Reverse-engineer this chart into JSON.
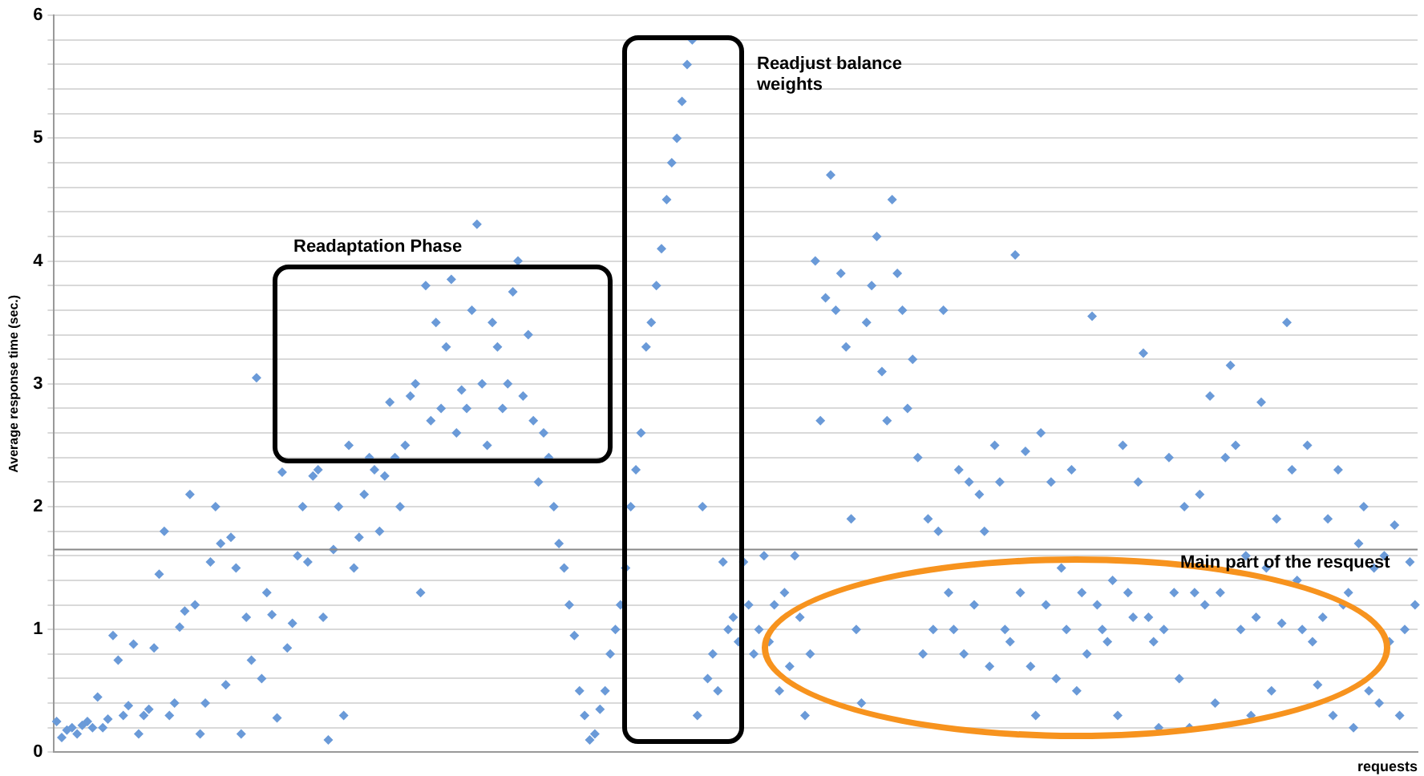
{
  "chart_data": {
    "type": "scatter",
    "ylabel": "Average response time (sec.)",
    "xlabel": "requests",
    "annotations": [
      "Readaptation Phase",
      "Readjust balance weights",
      "Main part of the resquest"
    ],
    "marker": "diamond",
    "grid": "y",
    "tick_labels": "y",
    "ylim": [
      0,
      6
    ],
    "yticks": [
      0,
      {
        "value": 0.2,
        "label": null
      },
      {
        "value": 0.4,
        "label": null
      },
      {
        "value": 0.6,
        "label": null
      },
      {
        "value": 0.8,
        "label": null
      },
      1,
      {
        "value": 1.2,
        "label": null
      },
      {
        "value": 1.4,
        "label": null
      },
      {
        "value": 1.6,
        "label": null
      },
      {
        "value": 1.8,
        "label": null
      },
      2,
      {
        "value": 2.2,
        "label": null
      },
      {
        "value": 2.4,
        "label": null
      },
      {
        "value": 2.6,
        "label": null
      },
      {
        "value": 2.8,
        "label": null
      },
      3,
      {
        "value": 3.2,
        "label": null
      },
      {
        "value": 3.4,
        "label": null
      },
      {
        "value": 3.6,
        "label": null
      },
      {
        "value": 3.8,
        "label": null
      },
      4,
      {
        "value": 4.2,
        "label": null
      },
      {
        "value": 4.4,
        "label": null
      },
      {
        "value": 4.6,
        "label": null
      },
      {
        "value": 4.8,
        "label": null
      },
      5,
      {
        "value": 5.2,
        "label": null
      },
      {
        "value": 5.4,
        "label": null
      },
      {
        "value": 5.6,
        "label": null
      },
      {
        "value": 5.8,
        "label": null
      },
      6
    ],
    "ref_lines": [
      {
        "axis": "y",
        "value": 1.65,
        "color": "#888888"
      }
    ],
    "categories": [
      null,
      null,
      null,
      null,
      null,
      null,
      null,
      null,
      null,
      null,
      null,
      null,
      null,
      null,
      null,
      null,
      null,
      null,
      null,
      null,
      null,
      null,
      null,
      null,
      null,
      null,
      null,
      null,
      null,
      null,
      null,
      null,
      null,
      null,
      null,
      null,
      null,
      null,
      null,
      null,
      null,
      null,
      null,
      null,
      null,
      null,
      null,
      null,
      null,
      null,
      null,
      null,
      null,
      null,
      null,
      null,
      null,
      null,
      null,
      null,
      null,
      null,
      null,
      null,
      null,
      null,
      null,
      null,
      null,
      null,
      null,
      null,
      null,
      null,
      null,
      null,
      null,
      null,
      null,
      null,
      null,
      null,
      null,
      null,
      null,
      null,
      null,
      null,
      null,
      null,
      null,
      null,
      null,
      null,
      null,
      null,
      null,
      null,
      null,
      null,
      null,
      null,
      null,
      null,
      null,
      null,
      null,
      null,
      null,
      null,
      null,
      null,
      null,
      null,
      null,
      null,
      null,
      null,
      null,
      null,
      null,
      null,
      null,
      null,
      null,
      null,
      null,
      null,
      null,
      null,
      null,
      null,
      null,
      null,
      null,
      null,
      null,
      null,
      null,
      null,
      null,
      null,
      null,
      null,
      null,
      null,
      null,
      null,
      null,
      null,
      null,
      null,
      null,
      null,
      null,
      null,
      null,
      null,
      null,
      null,
      null,
      null,
      null,
      null,
      null,
      null,
      null,
      null,
      null,
      null,
      null,
      null,
      null,
      null,
      null,
      null,
      null,
      null,
      null,
      null,
      null,
      null,
      null,
      null,
      null,
      null,
      null,
      null,
      null,
      null,
      null,
      null,
      null,
      null,
      null,
      null,
      null,
      null,
      null,
      null,
      null,
      null,
      null,
      null,
      null,
      null,
      null,
      null,
      null,
      null,
      null,
      null,
      null,
      null,
      null,
      null,
      null,
      null,
      null,
      null,
      null,
      null,
      null,
      null,
      null,
      null,
      null,
      null,
      null,
      null,
      null,
      null,
      null,
      null,
      null,
      null,
      null,
      null,
      null,
      null,
      null,
      null,
      null,
      null,
      null,
      null,
      null,
      null,
      null,
      null,
      null,
      null,
      null,
      null,
      null,
      null,
      null,
      null,
      null,
      null,
      null,
      null,
      null,
      null,
      null,
      null
    ],
    "series": [
      {
        "color": "#6a9ad8",
        "values": [
          0.25,
          0.12,
          0.18,
          0.2,
          0.15,
          0.22,
          0.25,
          0.2,
          0.45,
          0.2,
          0.27,
          0.95,
          0.75,
          0.3,
          0.38,
          0.88,
          0.15,
          0.3,
          0.35,
          0.85,
          1.45,
          1.8,
          0.3,
          0.4,
          1.02,
          1.15,
          2.1,
          1.2,
          0.15,
          0.4,
          1.55,
          2.0,
          1.7,
          0.55,
          1.75,
          1.5,
          0.15,
          1.1,
          0.75,
          3.05,
          0.6,
          1.3,
          1.12,
          0.28,
          2.28,
          0.85,
          1.05,
          1.6,
          2.0,
          1.55,
          2.25,
          2.3,
          1.1,
          0.1,
          1.65,
          2.0,
          0.3,
          2.5,
          1.5,
          1.75,
          2.1,
          2.4,
          2.3,
          1.8,
          2.25,
          2.85,
          2.4,
          2.0,
          2.5,
          2.9,
          3.0,
          1.3,
          3.8,
          2.7,
          3.5,
          2.8,
          3.3,
          3.85,
          2.6,
          2.95,
          2.8,
          3.6,
          4.3,
          3.0,
          2.5,
          3.5,
          3.3,
          2.8,
          3.0,
          3.75,
          4.0,
          2.9,
          3.4,
          2.7,
          2.2,
          2.6,
          2.4,
          2.0,
          1.7,
          1.5,
          1.2,
          0.95,
          0.5,
          0.3,
          0.1,
          0.15,
          0.35,
          0.5,
          0.8,
          1.0,
          1.2,
          1.5,
          2.0,
          2.3,
          2.6,
          3.3,
          3.5,
          3.8,
          4.1,
          4.5,
          4.8,
          5.0,
          5.3,
          5.6,
          5.8,
          0.3,
          2.0,
          0.6,
          0.8,
          0.5,
          1.55,
          1.0,
          1.1,
          0.9,
          1.55,
          1.2,
          0.8,
          1.0,
          1.6,
          0.9,
          1.2,
          0.5,
          1.3,
          0.7,
          1.6,
          1.1,
          0.3,
          0.8,
          4.0,
          2.7,
          3.7,
          4.7,
          3.6,
          3.9,
          3.3,
          1.9,
          1.0,
          0.4,
          3.5,
          3.8,
          4.2,
          3.1,
          2.7,
          4.5,
          3.9,
          3.6,
          2.8,
          3.2,
          2.4,
          0.8,
          1.9,
          1.0,
          1.8,
          3.6,
          1.3,
          1.0,
          2.3,
          0.8,
          2.2,
          1.2,
          2.1,
          1.8,
          0.7,
          2.5,
          2.2,
          1.0,
          0.9,
          4.05,
          1.3,
          2.45,
          0.7,
          0.3,
          2.6,
          1.2,
          2.2,
          0.6,
          1.5,
          1.0,
          2.3,
          0.5,
          1.3,
          0.8,
          3.55,
          1.2,
          1.0,
          0.9,
          1.4,
          0.3,
          2.5,
          1.3,
          1.1,
          2.2,
          3.25,
          1.1,
          0.9,
          0.2,
          1.0,
          2.4,
          1.3,
          0.6,
          2.0,
          0.2,
          1.3,
          2.1,
          1.2,
          2.9,
          0.4,
          1.3,
          2.4,
          3.15,
          2.5,
          1.0,
          1.6,
          0.3,
          1.1,
          2.85,
          1.5,
          0.5,
          1.9,
          1.05,
          3.5,
          2.3,
          1.4,
          1.0,
          2.5,
          0.9,
          0.55,
          1.1,
          1.9,
          0.3,
          2.3,
          1.2,
          1.3,
          0.2,
          1.7,
          2.0,
          0.5,
          1.5,
          0.4,
          1.6,
          0.9,
          1.85,
          0.3,
          1.0,
          1.55,
          1.2
        ]
      }
    ]
  }
}
